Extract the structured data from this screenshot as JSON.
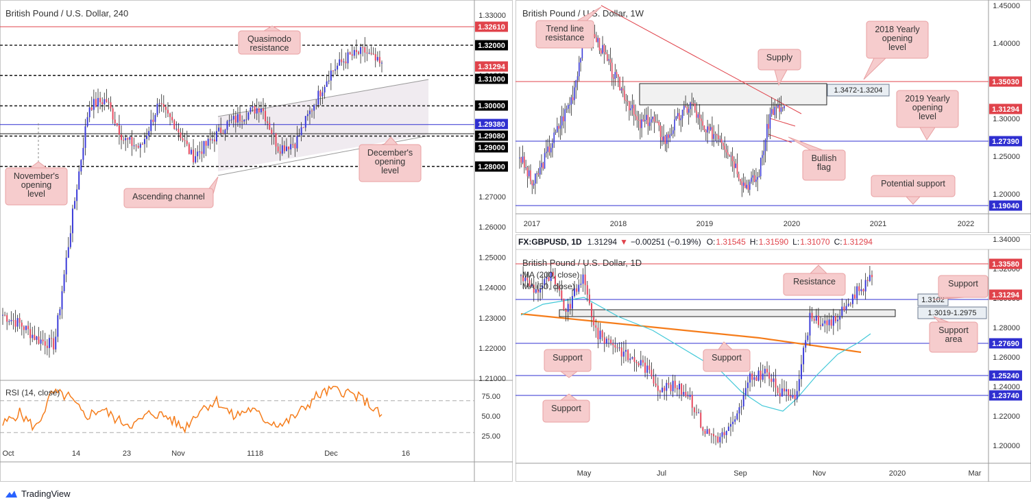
{
  "colors": {
    "up": "#3a3ad8",
    "down": "#e6475d",
    "red": "#e0434b",
    "blue": "#2f2fd0",
    "gray": "#8c8c8c",
    "orange": "#f57c1a",
    "cyan": "#40c8d8",
    "calloutBg": "#f6cccd",
    "calloutBorder": "#e8a0a2"
  },
  "panel_a": {
    "title": "British Pound / U.S. Dollar, 240",
    "price_ticks": [
      "1.33000",
      "1.32000",
      "1.31000",
      "1.30000",
      "1.29000",
      "1.28000",
      "1.27000",
      "1.26000",
      "1.25000",
      "1.24000",
      "1.23000",
      "1.22000",
      "1.21000"
    ],
    "level_labels": [
      {
        "text": "1.32610",
        "color": "#e0434b"
      },
      {
        "text": "1.32000",
        "color": "#000000"
      },
      {
        "text": "1.31294",
        "color": "#e0434b"
      },
      {
        "text": "1.31000",
        "color": "#000000"
      },
      {
        "text": "1.30000",
        "color": "#000000"
      },
      {
        "text": "1.29380",
        "color": "#2f2fd0"
      },
      {
        "text": "1.29080",
        "color": "#000000"
      },
      {
        "text": "1.29000",
        "color": "#000000"
      },
      {
        "text": "1.28000",
        "color": "#000000"
      }
    ],
    "x_ticks": [
      "Oct",
      "14",
      "23",
      "Nov",
      "11",
      "18",
      "Dec",
      "16"
    ],
    "callouts": [
      "Quasimodo resistance",
      "December's opening level",
      "November's opening level",
      "Ascending channel"
    ],
    "rsi": {
      "label": "RSI (14, close)",
      "ticks": [
        "75.00",
        "50.00",
        "25.00"
      ]
    }
  },
  "panel_b": {
    "title": "British Pound / U.S. Dollar, 1W",
    "price_ticks": [
      "1.45000",
      "1.40000",
      "1.35000",
      "1.30000",
      "1.25000",
      "1.20000"
    ],
    "level_labels": [
      {
        "text": "1.35030",
        "color": "#e0434b"
      },
      {
        "text": "1.31294",
        "color": "#e0434b"
      },
      {
        "text": "1.27390",
        "color": "#2f2fd0"
      },
      {
        "text": "1.19040",
        "color": "#2f2fd0"
      }
    ],
    "x_ticks": [
      "2017",
      "2018",
      "2019",
      "2020",
      "2021",
      "2022"
    ],
    "zone_label": "1.3472-1.3204",
    "callouts": [
      "Trend line resistance",
      "2018 Yearly opening level",
      "Supply",
      "2019 Yearly opening level",
      "Bullish flag",
      "Potential support"
    ]
  },
  "panel_c": {
    "header": {
      "symbol": "FX:GBPUSD, 1D",
      "last": "1.31294",
      "change": "−0.00251 (−0.19%)",
      "o_label": "O:",
      "o": "1.31545",
      "h_label": "H:",
      "h": "1.31590",
      "l_label": "L:",
      "l": "1.31070",
      "c_label": "C:",
      "c": "1.31294"
    },
    "title": "British Pound / U.S. Dollar, 1D",
    "legend": [
      "MA (200, close)",
      "MA (50, close)"
    ],
    "price_ticks": [
      "1.34000",
      "1.32000",
      "1.30000",
      "1.28000",
      "1.26000",
      "1.24000",
      "1.22000",
      "1.20000"
    ],
    "level_labels": [
      {
        "text": "1.33580",
        "color": "#e0434b"
      },
      {
        "text": "1.31294",
        "color": "#e0434b"
      },
      {
        "text": "1.27690",
        "color": "#2f2fd0"
      },
      {
        "text": "1.25240",
        "color": "#2f2fd0"
      },
      {
        "text": "1.23740",
        "color": "#2f2fd0"
      }
    ],
    "x_ticks": [
      "May",
      "Jul",
      "Sep",
      "Nov",
      "2020",
      "Mar"
    ],
    "zone_labels": [
      "1.3102",
      "1.3019-1.2975"
    ],
    "callouts": [
      "Resistance",
      "Support",
      "Support area",
      "Support",
      "Support",
      "Support"
    ]
  },
  "footer": {
    "brand": "TradingView"
  }
}
